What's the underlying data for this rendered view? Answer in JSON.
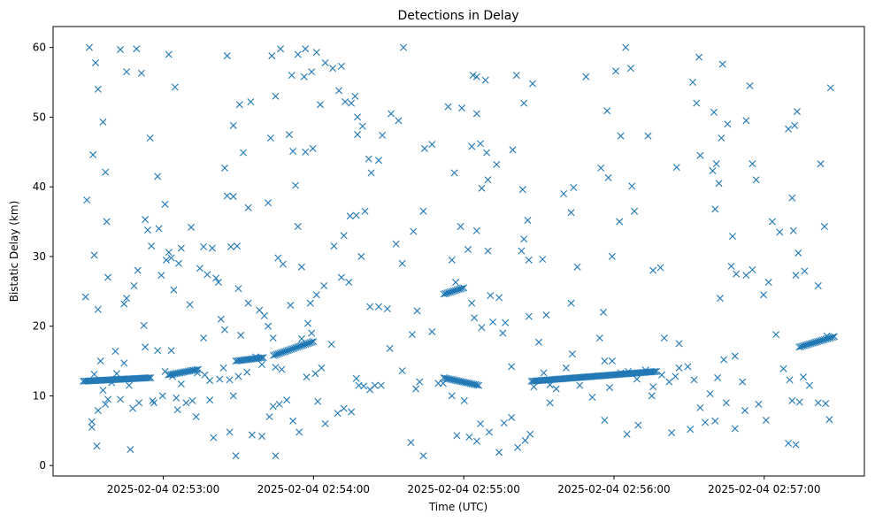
{
  "chart_data": {
    "type": "scatter",
    "title": "Detections in Delay",
    "xlabel": "Time (UTC)",
    "ylabel": "Bistatic Delay (km)",
    "marker": "x",
    "color": "#1f77b4",
    "grid": false,
    "xlim": [
      "2025-02-04 02:52:16",
      "2025-02-04 02:57:40"
    ],
    "ylim": [
      -1.5,
      63
    ],
    "xticks": [
      "2025-02-04 02:53:00",
      "2025-02-04 02:54:00",
      "2025-02-04 02:55:00",
      "2025-02-04 02:56:00",
      "2025-02-04 02:57:00"
    ],
    "yticks": [
      0,
      10,
      20,
      30,
      40,
      50,
      60
    ],
    "x_start": "2025-02-04 02:52:28",
    "x_end": "2025-02-04 02:57:28",
    "trend_segments": [
      {
        "t_start": "2025-02-04 02:52:28",
        "t_end": "2025-02-04 02:52:55",
        "y_start": 12.1,
        "y_end": 12.6
      },
      {
        "t_start": "2025-02-04 02:53:02",
        "t_end": "2025-02-04 02:53:14",
        "y_start": 13.0,
        "y_end": 13.8
      },
      {
        "t_start": "2025-02-04 02:53:29",
        "t_end": "2025-02-04 02:53:40",
        "y_start": 15.0,
        "y_end": 15.5
      },
      {
        "t_start": "2025-02-04 02:53:44",
        "t_end": "2025-02-04 02:54:00",
        "y_start": 15.8,
        "y_end": 17.8
      },
      {
        "t_start": "2025-02-04 02:54:52",
        "t_end": "2025-02-04 02:55:00",
        "y_start": 24.6,
        "y_end": 25.5
      },
      {
        "t_start": "2025-02-04 02:54:52",
        "t_end": "2025-02-04 02:55:06",
        "y_start": 12.6,
        "y_end": 11.5
      },
      {
        "t_start": "2025-02-04 02:55:27",
        "t_end": "2025-02-04 02:56:17",
        "y_start": 12.1,
        "y_end": 13.5
      },
      {
        "t_start": "2025-02-04 02:57:14",
        "t_end": "2025-02-04 02:57:28",
        "y_start": 17.0,
        "y_end": 18.5
      }
    ],
    "scatter_points": [
      [
        0.05,
        60.0
      ],
      [
        0.1,
        57.8
      ],
      [
        0.12,
        54.0
      ],
      [
        0.16,
        49.3
      ],
      [
        0.18,
        42.1
      ],
      [
        0.08,
        44.6
      ],
      [
        0.03,
        38.1
      ],
      [
        0.19,
        35.0
      ],
      [
        0.09,
        30.2
      ],
      [
        0.2,
        27.0
      ],
      [
        0.02,
        24.2
      ],
      [
        0.12,
        22.4
      ],
      [
        0.14,
        15.0
      ],
      [
        0.18,
        8.8
      ],
      [
        0.07,
        5.5
      ],
      [
        0.11,
        2.8
      ],
      [
        0.3,
        59.7
      ],
      [
        0.35,
        56.5
      ],
      [
        0.43,
        59.8
      ],
      [
        0.47,
        56.3
      ],
      [
        0.54,
        47.0
      ],
      [
        0.6,
        41.5
      ],
      [
        0.55,
        31.5
      ],
      [
        0.44,
        28.0
      ],
      [
        0.41,
        25.8
      ],
      [
        0.33,
        23.2
      ],
      [
        0.26,
        16.4
      ],
      [
        0.3,
        9.5
      ],
      [
        0.38,
        2.3
      ],
      [
        0.61,
        34.0
      ],
      [
        0.49,
        20.1
      ],
      [
        0.57,
        9.0
      ],
      [
        0.69,
        59.0
      ],
      [
        0.74,
        54.3
      ],
      [
        0.66,
        37.5
      ],
      [
        0.67,
        29.5
      ],
      [
        0.73,
        25.2
      ],
      [
        0.71,
        16.5
      ],
      [
        0.76,
        8.0
      ],
      [
        0.64,
        10.0
      ],
      [
        0.79,
        31.2
      ],
      [
        0.86,
        23.1
      ],
      [
        0.91,
        7.0
      ],
      [
        0.98,
        13.0
      ],
      [
        1.02,
        12.2
      ],
      [
        1.09,
        26.3
      ],
      [
        1.11,
        21.0
      ],
      [
        1.16,
        58.8
      ],
      [
        1.21,
        48.8
      ],
      [
        1.26,
        51.8
      ],
      [
        1.14,
        42.7
      ],
      [
        1.16,
        38.7
      ],
      [
        1.21,
        38.6
      ],
      [
        1.19,
        31.4
      ],
      [
        1.24,
        31.5
      ],
      [
        1.29,
        44.9
      ],
      [
        1.35,
        52.2
      ],
      [
        1.33,
        37.0
      ],
      [
        1.18,
        4.8
      ],
      [
        1.23,
        1.4
      ],
      [
        1.27,
        18.7
      ],
      [
        1.36,
        4.4
      ],
      [
        1.44,
        4.2
      ],
      [
        1.52,
        58.8
      ],
      [
        1.59,
        59.8
      ],
      [
        1.55,
        53.0
      ],
      [
        1.51,
        47.0
      ],
      [
        1.49,
        37.7
      ],
      [
        1.57,
        29.8
      ],
      [
        1.46,
        21.5
      ],
      [
        1.53,
        8.5
      ],
      [
        1.55,
        1.4
      ],
      [
        1.68,
        56.0
      ],
      [
        1.73,
        59.0
      ],
      [
        1.78,
        55.8
      ],
      [
        1.66,
        47.5
      ],
      [
        1.69,
        45.1
      ],
      [
        1.71,
        40.2
      ],
      [
        1.73,
        34.3
      ],
      [
        1.79,
        59.8
      ],
      [
        1.84,
        56.5
      ],
      [
        1.88,
        59.3
      ],
      [
        1.91,
        51.8
      ],
      [
        1.79,
        45.0
      ],
      [
        1.85,
        45.5
      ],
      [
        1.95,
        57.8
      ],
      [
        2.01,
        57.0
      ],
      [
        2.06,
        53.8
      ],
      [
        2.08,
        57.3
      ],
      [
        2.11,
        52.2
      ],
      [
        2.16,
        52.0
      ],
      [
        2.19,
        53.0
      ],
      [
        2.21,
        50.0
      ],
      [
        2.25,
        48.7
      ],
      [
        2.21,
        47.5
      ],
      [
        2.3,
        44.0
      ],
      [
        2.32,
        42.0
      ],
      [
        2.38,
        43.8
      ],
      [
        2.41,
        47.4
      ],
      [
        2.48,
        50.5
      ],
      [
        2.27,
        36.5
      ],
      [
        2.15,
        35.8
      ],
      [
        2.2,
        35.9
      ],
      [
        2.1,
        33.0
      ],
      [
        2.02,
        31.5
      ],
      [
        1.94,
        25.8
      ],
      [
        1.88,
        24.5
      ],
      [
        1.83,
        23.3
      ],
      [
        1.76,
        28.5
      ],
      [
        1.67,
        23.0
      ],
      [
        1.61,
        28.9
      ],
      [
        2.08,
        27.0
      ],
      [
        2.14,
        26.3
      ],
      [
        2.24,
        30.0
      ],
      [
        2.31,
        22.8
      ],
      [
        2.38,
        22.8
      ],
      [
        2.45,
        22.5
      ],
      [
        2.52,
        31.8
      ],
      [
        2.57,
        29.0
      ],
      [
        2.66,
        33.6
      ],
      [
        2.69,
        22.2
      ],
      [
        2.74,
        36.5
      ],
      [
        2.54,
        49.5
      ],
      [
        2.58,
        60.0
      ],
      [
        2.75,
        45.5
      ],
      [
        2.81,
        46.1
      ],
      [
        2.94,
        51.5
      ],
      [
        2.99,
        42.0
      ],
      [
        3.05,
        51.3
      ],
      [
        3.04,
        34.3
      ],
      [
        3.1,
        31.0
      ],
      [
        2.97,
        29.5
      ],
      [
        3.0,
        26.3
      ],
      [
        3.13,
        23.3
      ],
      [
        3.15,
        21.2
      ],
      [
        3.21,
        19.8
      ],
      [
        3.17,
        33.7
      ],
      [
        3.26,
        30.8
      ],
      [
        3.28,
        24.4
      ],
      [
        3.35,
        24.1
      ],
      [
        3.4,
        20.5
      ],
      [
        3.45,
        14.2
      ],
      [
        3.13,
        45.8
      ],
      [
        3.2,
        46.2
      ],
      [
        3.25,
        44.9
      ],
      [
        3.14,
        56.0
      ],
      [
        3.17,
        55.8
      ],
      [
        3.24,
        55.3
      ],
      [
        3.17,
        50.5
      ],
      [
        3.26,
        41.0
      ],
      [
        3.21,
        39.8
      ],
      [
        3.33,
        43.2
      ],
      [
        3.49,
        56.0
      ],
      [
        3.55,
        52.0
      ],
      [
        3.62,
        54.8
      ],
      [
        3.46,
        45.3
      ],
      [
        3.54,
        39.6
      ],
      [
        3.58,
        35.2
      ],
      [
        3.55,
        32.5
      ],
      [
        3.53,
        30.8
      ],
      [
        3.59,
        29.5
      ],
      [
        3.7,
        29.6
      ],
      [
        3.76,
        9.0
      ],
      [
        3.81,
        11.0
      ],
      [
        3.87,
        39.0
      ],
      [
        3.95,
        39.9
      ],
      [
        3.93,
        36.3
      ],
      [
        3.98,
        28.5
      ],
      [
        3.93,
        23.3
      ],
      [
        3.94,
        16.0
      ],
      [
        4.05,
        55.8
      ],
      [
        4.17,
        42.7
      ],
      [
        4.23,
        41.3
      ],
      [
        4.22,
        50.9
      ],
      [
        4.29,
        56.6
      ],
      [
        4.33,
        47.3
      ],
      [
        4.37,
        60.0
      ],
      [
        4.41,
        57.0
      ],
      [
        4.32,
        35.0
      ],
      [
        4.42,
        40.1
      ],
      [
        4.44,
        36.5
      ],
      [
        4.55,
        47.3
      ],
      [
        4.59,
        28.0
      ],
      [
        4.65,
        28.4
      ],
      [
        4.19,
        22.0
      ],
      [
        4.26,
        30.0
      ],
      [
        4.16,
        18.3
      ],
      [
        4.2,
        15.0
      ],
      [
        4.26,
        15.0
      ],
      [
        4.33,
        13.3
      ],
      [
        4.39,
        13.5
      ],
      [
        4.46,
        12.4
      ],
      [
        4.53,
        13.7
      ],
      [
        4.59,
        11.3
      ],
      [
        4.66,
        13.0
      ],
      [
        4.72,
        12.0
      ],
      [
        4.77,
        12.8
      ],
      [
        4.8,
        14.0
      ],
      [
        4.87,
        14.2
      ],
      [
        4.92,
        12.3
      ],
      [
        4.97,
        8.3
      ],
      [
        5.05,
        10.3
      ],
      [
        5.11,
        12.6
      ],
      [
        5.16,
        15.2
      ],
      [
        5.25,
        15.7
      ],
      [
        5.31,
        12.0
      ],
      [
        5.33,
        7.9
      ],
      [
        4.68,
        18.3
      ],
      [
        4.8,
        17.5
      ],
      [
        4.78,
        42.8
      ],
      [
        4.97,
        44.5
      ],
      [
        5.07,
        42.3
      ],
      [
        5.12,
        40.5
      ],
      [
        5.1,
        43.3
      ],
      [
        5.14,
        47.0
      ],
      [
        5.08,
        50.7
      ],
      [
        5.19,
        49.0
      ],
      [
        5.15,
        57.6
      ],
      [
        4.96,
        58.6
      ],
      [
        4.94,
        52.0
      ],
      [
        4.91,
        55.0
      ],
      [
        5.09,
        36.8
      ],
      [
        5.13,
        24.0
      ],
      [
        5.23,
        32.9
      ],
      [
        5.22,
        28.6
      ],
      [
        5.26,
        27.5
      ],
      [
        5.34,
        27.3
      ],
      [
        5.39,
        28.1
      ],
      [
        5.48,
        24.5
      ],
      [
        5.52,
        26.3
      ],
      [
        5.55,
        35.0
      ],
      [
        5.34,
        49.5
      ],
      [
        5.37,
        54.5
      ],
      [
        5.39,
        43.3
      ],
      [
        5.42,
        41.0
      ],
      [
        5.61,
        33.5
      ],
      [
        5.68,
        48.3
      ],
      [
        5.73,
        48.8
      ],
      [
        5.75,
        50.8
      ],
      [
        5.71,
        38.4
      ],
      [
        5.72,
        33.7
      ],
      [
        5.76,
        30.5
      ],
      [
        5.81,
        27.9
      ],
      [
        5.74,
        27.3
      ],
      [
        5.92,
        25.8
      ],
      [
        5.97,
        34.3
      ],
      [
        5.99,
        18.6
      ],
      [
        5.94,
        43.3
      ],
      [
        6.02,
        54.2
      ],
      [
        5.58,
        18.8
      ],
      [
        5.64,
        13.9
      ],
      [
        5.69,
        12.3
      ],
      [
        5.68,
        3.2
      ],
      [
        5.74,
        3.0
      ],
      [
        5.8,
        12.7
      ],
      [
        5.71,
        9.3
      ],
      [
        5.77,
        9.1
      ],
      [
        5.85,
        11.5
      ],
      [
        5.92,
        9.0
      ],
      [
        5.98,
        8.9
      ],
      [
        6.01,
        6.6
      ],
      [
        5.5,
        6.5
      ],
      [
        5.44,
        8.8
      ],
      [
        5.25,
        5.3
      ],
      [
        5.18,
        9.0
      ],
      [
        5.09,
        6.4
      ],
      [
        5.01,
        6.2
      ],
      [
        4.89,
        5.2
      ],
      [
        4.74,
        4.7
      ],
      [
        4.58,
        10.0
      ],
      [
        4.47,
        5.8
      ],
      [
        4.38,
        4.5
      ],
      [
        4.24,
        11.2
      ],
      [
        4.2,
        6.5
      ],
      [
        4.1,
        9.8
      ],
      [
        4.0,
        11.5
      ],
      [
        3.89,
        14.0
      ],
      [
        3.76,
        11.6
      ],
      [
        3.71,
        13.3
      ],
      [
        3.63,
        11.3
      ],
      [
        3.56,
        3.6
      ],
      [
        3.6,
        4.5
      ],
      [
        3.5,
        2.6
      ],
      [
        3.45,
        6.9
      ],
      [
        3.39,
        6.1
      ],
      [
        3.35,
        1.9
      ],
      [
        3.27,
        4.8
      ],
      [
        3.2,
        6.0
      ],
      [
        3.17,
        3.5
      ],
      [
        3.11,
        4.1
      ],
      [
        3.07,
        9.3
      ],
      [
        3.01,
        4.3
      ],
      [
        2.97,
        10.0
      ],
      [
        2.9,
        11.8
      ],
      [
        2.86,
        11.8
      ],
      [
        2.74,
        1.4
      ],
      [
        2.71,
        12.0
      ],
      [
        2.68,
        11.0
      ],
      [
        2.64,
        3.3
      ],
      [
        2.57,
        13.6
      ],
      [
        2.4,
        11.5
      ],
      [
        2.31,
        10.9
      ],
      [
        2.35,
        11.5
      ],
      [
        2.2,
        12.5
      ],
      [
        2.16,
        7.7
      ],
      [
        2.1,
        8.2
      ],
      [
        2.05,
        7.5
      ],
      [
        2.0,
        17.4
      ],
      [
        1.95,
        6.0
      ],
      [
        1.92,
        14.0
      ],
      [
        1.89,
        9.2
      ],
      [
        1.87,
        13.2
      ],
      [
        1.8,
        12.7
      ],
      [
        1.74,
        4.8
      ],
      [
        1.69,
        6.4
      ],
      [
        1.64,
        9.4
      ],
      [
        1.6,
        13.8
      ],
      [
        1.58,
        8.8
      ],
      [
        1.55,
        14.1
      ],
      [
        1.5,
        7.0
      ],
      [
        1.44,
        14.5
      ],
      [
        1.39,
        15.6
      ],
      [
        1.32,
        13.4
      ],
      [
        1.25,
        12.8
      ],
      [
        1.21,
        10.0
      ],
      [
        1.18,
        12.3
      ],
      [
        1.13,
        14.0
      ],
      [
        1.1,
        12.4
      ],
      [
        1.05,
        4.0
      ],
      [
        1.02,
        9.4
      ],
      [
        0.97,
        18.3
      ],
      [
        0.92,
        13.3
      ],
      [
        0.88,
        9.3
      ],
      [
        0.83,
        9.0
      ],
      [
        0.79,
        11.7
      ],
      [
        0.75,
        9.7
      ],
      [
        0.72,
        12.8
      ],
      [
        0.66,
        13.5
      ],
      [
        0.6,
        16.5
      ],
      [
        0.56,
        9.3
      ],
      [
        0.5,
        17.0
      ],
      [
        0.45,
        9.0
      ],
      [
        0.4,
        8.2
      ],
      [
        0.37,
        11.5
      ],
      [
        0.33,
        14.7
      ],
      [
        0.27,
        13.2
      ],
      [
        0.23,
        11.9
      ],
      [
        0.2,
        9.5
      ],
      [
        0.16,
        10.8
      ],
      [
        0.12,
        7.9
      ],
      [
        0.09,
        13.1
      ],
      [
        0.07,
        6.3
      ],
      [
        1.84,
        19.0
      ],
      [
        1.81,
        20.4
      ],
      [
        1.49,
        20.0
      ],
      [
        1.53,
        18.3
      ],
      [
        1.14,
        19.5
      ],
      [
        1.25,
        25.4
      ],
      [
        1.33,
        23.3
      ],
      [
        1.42,
        22.3
      ],
      [
        0.77,
        29.0
      ],
      [
        0.71,
        29.8
      ],
      [
        0.69,
        30.6
      ],
      [
        0.5,
        35.3
      ],
      [
        0.52,
        33.8
      ],
      [
        0.35,
        24.0
      ],
      [
        0.63,
        27.3
      ],
      [
        1.04,
        31.2
      ],
      [
        1.07,
        26.9
      ],
      [
        1.0,
        27.4
      ],
      [
        0.87,
        34.2
      ],
      [
        0.94,
        28.3
      ],
      [
        0.97,
        31.4
      ],
      [
        1.76,
        18.2
      ],
      [
        2.22,
        11.5
      ],
      [
        2.26,
        11.4
      ],
      [
        2.47,
        16.8
      ],
      [
        2.65,
        18.8
      ],
      [
        2.81,
        19.2
      ],
      [
        3.3,
        20.6
      ],
      [
        3.38,
        19.0
      ],
      [
        3.59,
        21.4
      ],
      [
        3.67,
        17.7
      ],
      [
        3.73,
        21.6
      ]
    ]
  }
}
